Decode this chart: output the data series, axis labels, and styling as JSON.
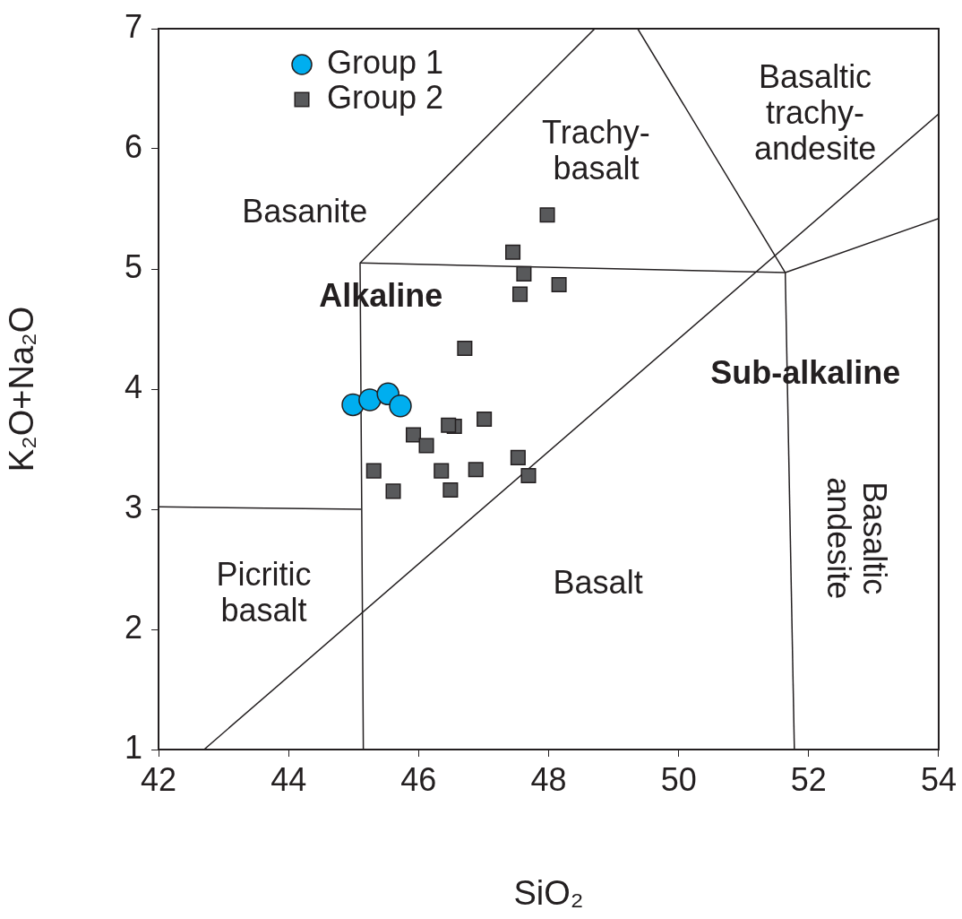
{
  "chart_data": {
    "type": "scatter",
    "xlabel": "SiO₂",
    "ylabel": "K₂O+Na₂O",
    "xlim": [
      42,
      54
    ],
    "xticks": [
      42,
      44,
      46,
      48,
      50,
      52,
      54
    ],
    "ylim": [
      1,
      7
    ],
    "yticks": [
      1,
      2,
      3,
      4,
      5,
      6,
      7
    ],
    "grid": false,
    "legend": "top left",
    "series": [
      {
        "name": "Group 1",
        "marker": "circle",
        "color": "#00aeef",
        "x": [
          44.99,
          45.25,
          45.53,
          45.72
        ],
        "values": [
          3.87,
          3.91,
          3.96,
          3.86
        ]
      },
      {
        "name": "Group 2",
        "marker": "square",
        "color": "#58595b",
        "x": [
          47.98,
          47.45,
          47.62,
          47.56,
          48.16,
          46.71,
          47.01,
          46.55,
          46.46,
          45.92,
          46.12,
          45.31,
          45.61,
          46.35,
          46.49,
          46.88,
          47.53,
          47.69
        ],
        "values": [
          5.45,
          5.14,
          4.96,
          4.79,
          4.87,
          4.34,
          3.75,
          3.69,
          3.7,
          3.62,
          3.53,
          3.32,
          3.15,
          3.32,
          3.16,
          3.33,
          3.43,
          3.28
        ]
      },
      {
        "type": "line",
        "marker": "none",
        "color": "#231f20",
        "x": [
          42,
          45.12
        ],
        "values": [
          3.02,
          3.0
        ]
      },
      {
        "type": "line",
        "marker": "none",
        "color": "#231f20",
        "x": [
          45.15,
          45.1,
          48.71
        ],
        "values": [
          1,
          5.05,
          7
        ]
      },
      {
        "type": "line",
        "marker": "none",
        "color": "#231f20",
        "x": [
          45.1,
          51.64
        ],
        "values": [
          5.05,
          4.97
        ]
      },
      {
        "type": "line",
        "marker": "none",
        "color": "#231f20",
        "x": [
          49.37,
          51.64,
          54
        ],
        "values": [
          7,
          4.97,
          5.42
        ]
      },
      {
        "type": "line",
        "marker": "none",
        "color": "#231f20",
        "x": [
          51.64,
          51.78
        ],
        "values": [
          4.97,
          1
        ]
      },
      {
        "type": "line",
        "marker": "none",
        "color": "#231f20",
        "x": [
          42.7,
          54
        ],
        "values": [
          1,
          6.29
        ]
      }
    ],
    "annotations": [
      "Basanite",
      "Trachy-\nbasalt",
      "Basaltic\ntrachy-\nandesite",
      "Alkaline",
      "Sub-alkaline",
      "Picritic\nbasalt",
      "Basalt",
      "Basaltic\nandesite"
    ]
  }
}
